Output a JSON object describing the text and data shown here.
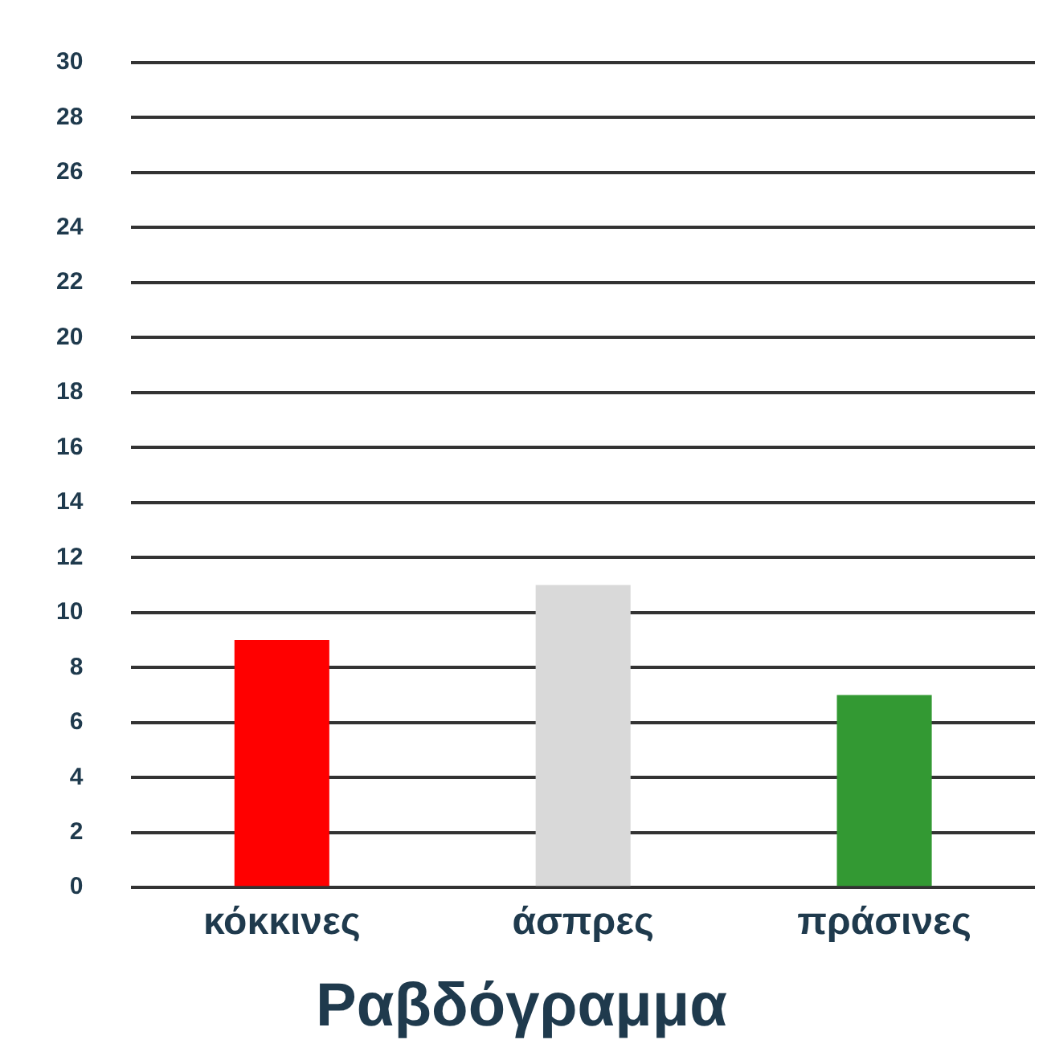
{
  "chart_data": {
    "type": "bar",
    "title": "Ραβδόγραμμα",
    "categories": [
      "κόκκινες",
      "άσπρες",
      "πράσινες"
    ],
    "values": [
      9,
      11,
      7
    ],
    "colors": [
      "#ff0000",
      "#d9d9d9",
      "#339933"
    ],
    "ylim": [
      0,
      30
    ],
    "yticks": [
      0,
      2,
      4,
      6,
      8,
      10,
      12,
      14,
      16,
      18,
      20,
      22,
      24,
      26,
      28,
      30
    ],
    "grid": "y"
  }
}
